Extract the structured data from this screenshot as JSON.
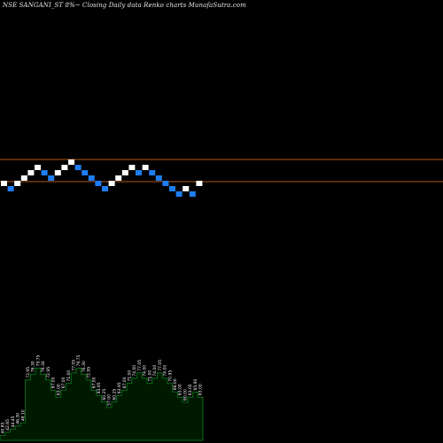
{
  "header": {
    "title": "NSE SANGANI_ST 8%~  Closing Daily data  Renko  charts MunafaSutra.com"
  },
  "colors": {
    "background": "#000000",
    "up_brick": "#ffffff",
    "down_brick": "#1e7df0",
    "reference_line": "#b4581c",
    "volume_fill": "#001a00",
    "volume_outline": "#0b6b1a"
  },
  "chart_data": [
    {
      "type": "renko",
      "title": "",
      "bricks": [
        {
          "dir": "up",
          "level": 1
        },
        {
          "dir": "down",
          "level": 0
        },
        {
          "dir": "up",
          "level": 1
        },
        {
          "dir": "up",
          "level": 2
        },
        {
          "dir": "up",
          "level": 3
        },
        {
          "dir": "up",
          "level": 4
        },
        {
          "dir": "down",
          "level": 3
        },
        {
          "dir": "down",
          "level": 2
        },
        {
          "dir": "up",
          "level": 3
        },
        {
          "dir": "up",
          "level": 4
        },
        {
          "dir": "up",
          "level": 5
        },
        {
          "dir": "down",
          "level": 4
        },
        {
          "dir": "down",
          "level": 3
        },
        {
          "dir": "down",
          "level": 2
        },
        {
          "dir": "down",
          "level": 1
        },
        {
          "dir": "down",
          "level": 0
        },
        {
          "dir": "up",
          "level": 1
        },
        {
          "dir": "up",
          "level": 2
        },
        {
          "dir": "up",
          "level": 3
        },
        {
          "dir": "up",
          "level": 4
        },
        {
          "dir": "down",
          "level": 3
        },
        {
          "dir": "up",
          "level": 4
        },
        {
          "dir": "down",
          "level": 3
        },
        {
          "dir": "down",
          "level": 2
        },
        {
          "dir": "down",
          "level": 1
        },
        {
          "dir": "down",
          "level": 0
        },
        {
          "dir": "down",
          "level": -1
        },
        {
          "dir": "up",
          "level": 0
        },
        {
          "dir": "down",
          "level": -1
        },
        {
          "dir": "up",
          "level": 1
        }
      ],
      "reference_lines": [
        "upper",
        "lower"
      ]
    },
    {
      "type": "area",
      "title": "",
      "values": [
        40.85,
        42.65,
        44.45,
        46.3,
        48.1,
        72.95,
        76.3,
        79.75,
        76.3,
        72.95,
        67.0,
        63.0,
        67.0,
        71.0,
        77.05,
        79.75,
        76.3,
        72.95,
        67.0,
        63.95,
        60.25,
        57.0,
        60.25,
        63.95,
        67.0,
        71.0,
        74.0,
        77.05,
        74.0,
        71.0,
        74.0,
        77.05,
        74.0,
        70.95,
        66.0,
        63.0,
        60.0,
        63.0,
        65.9,
        63.0
      ],
      "labels": [
        "40.85",
        "42.65",
        "44.45",
        "46.30",
        "48.10",
        "72.95",
        "76.30",
        "79.75",
        "76.30",
        "72.95",
        "67.00",
        "63.00",
        "67.00",
        "71.00",
        "77.05",
        "79.75",
        "76.30",
        "72.95",
        "67.00",
        "63.95",
        "60.25",
        "57.00",
        "60.25",
        "63.95",
        "67.00",
        "71.00",
        "74.00",
        "77.05",
        "74.00",
        "71.00",
        "74.00",
        "77.05",
        "74.00",
        "70.95",
        "66.00",
        "63.00",
        "60.00",
        "63.00",
        "65.90",
        "63.00"
      ]
    }
  ]
}
